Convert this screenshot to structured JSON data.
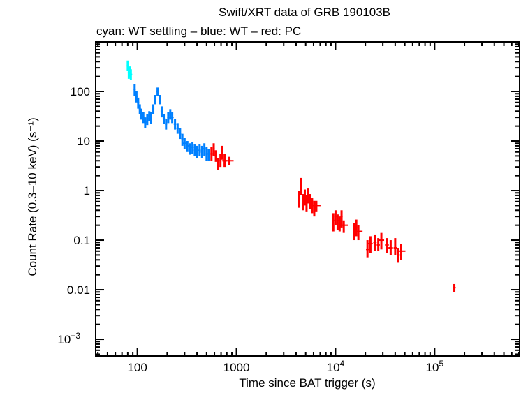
{
  "chart_data": {
    "type": "scatter",
    "title": "Swift/XRT data of GRB 190103B",
    "subtitle": "cyan: WT settling – blue: WT – red: PC",
    "xlabel": "Time since BAT trigger (s)",
    "ylabel": "Count Rate (0.3–10 keV) (s⁻¹)",
    "xscale": "log",
    "yscale": "log",
    "xlim": [
      38,
      720000
    ],
    "ylim": [
      0.00046,
      1000
    ],
    "x_ticks": [
      {
        "value": 100,
        "label": "100"
      },
      {
        "value": 1000,
        "label": "1000"
      },
      {
        "value": 10000,
        "label": "10",
        "exp": "4"
      },
      {
        "value": 100000,
        "label": "10",
        "exp": "5"
      }
    ],
    "y_ticks": [
      {
        "value": 100,
        "label": "100"
      },
      {
        "value": 10,
        "label": "10"
      },
      {
        "value": 1,
        "label": "1"
      },
      {
        "value": 0.1,
        "label": "0.1"
      },
      {
        "value": 0.01,
        "label": "0.01"
      },
      {
        "value": 0.001,
        "label": "10",
        "exp": "−3"
      }
    ],
    "grid": false,
    "point_format": [
      "time_s",
      "rate",
      "rate_low",
      "rate_high"
    ],
    "series": [
      {
        "mode": "WT settling",
        "color": "#00ffff",
        "points": [
          [
            80,
            330,
            260,
            420
          ],
          [
            82,
            240,
            180,
            300
          ],
          [
            84,
            250,
            190,
            320
          ],
          [
            86,
            220,
            170,
            280
          ]
        ]
      },
      {
        "mode": "WT",
        "color": "#0080ff",
        "points": [
          [
            94,
            110,
            80,
            140
          ],
          [
            98,
            80,
            60,
            100
          ],
          [
            102,
            60,
            45,
            75
          ],
          [
            106,
            45,
            35,
            55
          ],
          [
            110,
            35,
            27,
            45
          ],
          [
            115,
            30,
            23,
            38
          ],
          [
            120,
            24,
            18,
            30
          ],
          [
            126,
            28,
            21,
            35
          ],
          [
            132,
            32,
            25,
            40
          ],
          [
            138,
            30,
            22,
            38
          ],
          [
            145,
            45,
            35,
            55
          ],
          [
            152,
            70,
            55,
            85
          ],
          [
            160,
            100,
            80,
            120
          ],
          [
            168,
            70,
            55,
            85
          ],
          [
            176,
            40,
            30,
            50
          ],
          [
            185,
            28,
            22,
            35
          ],
          [
            195,
            22,
            17,
            28
          ],
          [
            205,
            30,
            23,
            38
          ],
          [
            215,
            35,
            27,
            44
          ],
          [
            225,
            30,
            23,
            38
          ],
          [
            240,
            22,
            17,
            28
          ],
          [
            255,
            18,
            14,
            23
          ],
          [
            270,
            14,
            11,
            18
          ],
          [
            285,
            11,
            8,
            14
          ],
          [
            300,
            9,
            7,
            11.5
          ],
          [
            320,
            8,
            6,
            10
          ],
          [
            340,
            7,
            5.3,
            9
          ],
          [
            360,
            7.5,
            5.5,
            9.5
          ],
          [
            380,
            6.5,
            5,
            8.5
          ],
          [
            400,
            6,
            4.5,
            8
          ],
          [
            425,
            6.5,
            5,
            8.5
          ],
          [
            450,
            6,
            4.5,
            8
          ],
          [
            475,
            7,
            5,
            9
          ],
          [
            500,
            5.5,
            4,
            7.5
          ],
          [
            525,
            5.5,
            4,
            7
          ]
        ]
      },
      {
        "mode": "PC",
        "color": "#ff0000",
        "points": [
          [
            560,
            5.5,
            4,
            7.5
          ],
          [
            590,
            7,
            5,
            9
          ],
          [
            620,
            5,
            3.8,
            6.5
          ],
          [
            650,
            3.5,
            2.6,
            4.5
          ],
          [
            690,
            4,
            3,
            5.5
          ],
          [
            720,
            6,
            4.2,
            8
          ],
          [
            760,
            4,
            3,
            5.5
          ],
          [
            850,
            4,
            3.3,
            4.8
          ],
          [
            4300,
            0.7,
            0.45,
            1.0
          ],
          [
            4500,
            1.2,
            0.8,
            1.8
          ],
          [
            4700,
            0.6,
            0.4,
            0.85
          ],
          [
            4900,
            0.75,
            0.5,
            1.05
          ],
          [
            5100,
            0.55,
            0.38,
            0.8
          ],
          [
            5300,
            0.8,
            0.55,
            1.1
          ],
          [
            5500,
            0.6,
            0.42,
            0.85
          ],
          [
            5800,
            0.5,
            0.35,
            0.7
          ],
          [
            6100,
            0.45,
            0.3,
            0.62
          ],
          [
            6400,
            0.5,
            0.38,
            0.62
          ],
          [
            9500,
            0.25,
            0.15,
            0.35
          ],
          [
            10000,
            0.3,
            0.2,
            0.4
          ],
          [
            10500,
            0.25,
            0.16,
            0.33
          ],
          [
            11000,
            0.22,
            0.15,
            0.3
          ],
          [
            11500,
            0.3,
            0.18,
            0.4
          ],
          [
            12100,
            0.2,
            0.14,
            0.25
          ],
          [
            15500,
            0.15,
            0.1,
            0.22
          ],
          [
            16200,
            0.18,
            0.12,
            0.26
          ],
          [
            17000,
            0.15,
            0.1,
            0.2
          ],
          [
            21000,
            0.065,
            0.045,
            0.1
          ],
          [
            22500,
            0.085,
            0.055,
            0.12
          ],
          [
            25000,
            0.09,
            0.06,
            0.13
          ],
          [
            27000,
            0.08,
            0.06,
            0.11
          ],
          [
            29000,
            0.1,
            0.065,
            0.14
          ],
          [
            33000,
            0.08,
            0.055,
            0.11
          ],
          [
            36000,
            0.07,
            0.05,
            0.1
          ],
          [
            40000,
            0.07,
            0.05,
            0.11
          ],
          [
            43000,
            0.05,
            0.035,
            0.07
          ],
          [
            46000,
            0.06,
            0.04,
            0.085
          ],
          [
            158000,
            0.011,
            0.009,
            0.013
          ]
        ]
      }
    ]
  }
}
